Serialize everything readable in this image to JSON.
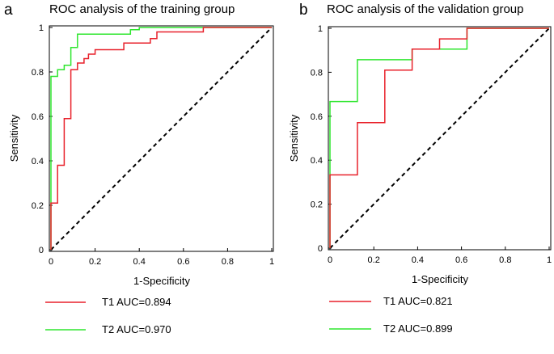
{
  "chart_data": [
    {
      "type": "line",
      "panel_label": "a",
      "title": "ROC analysis of the training group",
      "xlabel": "1-Specificity",
      "ylabel": "Sensitivity",
      "xlim": [
        0,
        1
      ],
      "ylim": [
        0,
        1
      ],
      "xticks": [
        "0",
        "0.2",
        "0.4",
        "0.6",
        "0.8",
        "1"
      ],
      "yticks": [
        "0",
        "0.2",
        "0.4",
        "0.6",
        "0.8",
        "1"
      ],
      "xtick_values": [
        0,
        0.2,
        0.4,
        0.6,
        0.8,
        1
      ],
      "ytick_values": [
        0,
        0.2,
        0.4,
        0.6,
        0.8,
        1
      ],
      "grid": false,
      "legend_position": "below",
      "reference_line": {
        "style": "dashed",
        "color": "#000000",
        "x": [
          0,
          1
        ],
        "y": [
          0,
          1
        ]
      },
      "series": [
        {
          "name": "T1",
          "label": "T1 AUC=0.894",
          "auc": 0.894,
          "color": "#e8212b",
          "x": [
            0,
            0,
            0.03,
            0.03,
            0.06,
            0.06,
            0.09,
            0.09,
            0.12,
            0.12,
            0.15,
            0.15,
            0.17,
            0.17,
            0.2,
            0.2,
            0.33,
            0.33,
            0.36,
            0.36,
            0.45,
            0.45,
            0.48,
            0.48,
            0.69,
            0.69,
            1
          ],
          "y": [
            0,
            0.21,
            0.21,
            0.38,
            0.38,
            0.59,
            0.59,
            0.81,
            0.81,
            0.84,
            0.84,
            0.86,
            0.86,
            0.88,
            0.88,
            0.9,
            0.9,
            0.93,
            0.93,
            0.93,
            0.93,
            0.95,
            0.95,
            0.98,
            0.98,
            1.0,
            1.0
          ]
        },
        {
          "name": "T2",
          "label": "T2 AUC=0.970",
          "auc": 0.97,
          "color": "#2ee62e",
          "x": [
            0,
            0,
            0.03,
            0.03,
            0.06,
            0.06,
            0.09,
            0.09,
            0.12,
            0.12,
            0.36,
            0.36,
            0.4,
            0.4,
            1
          ],
          "y": [
            0,
            0.78,
            0.78,
            0.81,
            0.81,
            0.83,
            0.83,
            0.91,
            0.91,
            0.97,
            0.97,
            0.99,
            0.99,
            1.0,
            1.0
          ]
        }
      ]
    },
    {
      "type": "line",
      "panel_label": "b",
      "title": "ROC analysis of the validation group",
      "xlabel": "1-Specificity",
      "ylabel": "Sensitivity",
      "xlim": [
        0,
        1
      ],
      "ylim": [
        0,
        1
      ],
      "xticks": [
        "0",
        "0.2",
        "0.4",
        "0.6",
        "0.8",
        "1"
      ],
      "yticks": [
        "0",
        "0.2",
        "0.4",
        "0.6",
        "0.8",
        "1"
      ],
      "xtick_values": [
        0,
        0.2,
        0.4,
        0.6,
        0.8,
        1
      ],
      "ytick_values": [
        0,
        0.2,
        0.4,
        0.6,
        0.8,
        1
      ],
      "grid": false,
      "legend_position": "below",
      "reference_line": {
        "style": "dashed",
        "color": "#000000",
        "x": [
          0,
          1
        ],
        "y": [
          0,
          1
        ]
      },
      "series": [
        {
          "name": "T1",
          "label": "T1 AUC=0.821",
          "auc": 0.821,
          "color": "#e8212b",
          "x": [
            0,
            0,
            0.125,
            0.125,
            0.25,
            0.25,
            0.375,
            0.375,
            0.5,
            0.5,
            0.625,
            0.625,
            1
          ],
          "y": [
            0,
            0.333,
            0.333,
            0.571,
            0.571,
            0.81,
            0.81,
            0.905,
            0.905,
            0.952,
            0.952,
            1.0,
            1.0
          ]
        },
        {
          "name": "T2",
          "label": "T2 AUC=0.899",
          "auc": 0.899,
          "color": "#2ee62e",
          "x": [
            0,
            0,
            0.125,
            0.125,
            0.375,
            0.375,
            0.625,
            0.625,
            1
          ],
          "y": [
            0,
            0.667,
            0.667,
            0.857,
            0.857,
            0.905,
            0.905,
            1.0,
            1.0
          ]
        }
      ]
    }
  ]
}
